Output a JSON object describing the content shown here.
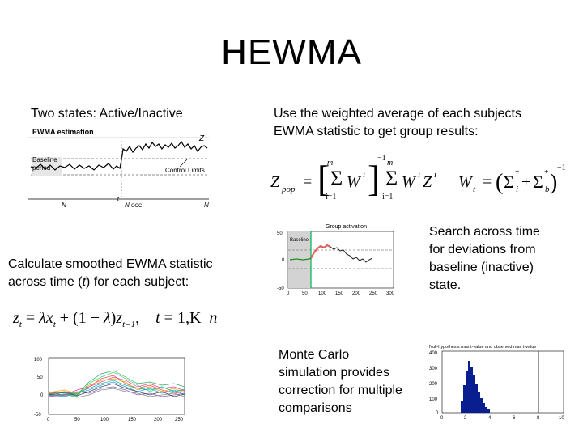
{
  "slide": {
    "title": "HEWMA",
    "left_heading": "Two states: Active/Inactive",
    "right_heading_line1": "Use the weighted average of each subjects",
    "right_heading_line2": "EWMA statistic to get group results:",
    "ewma_text_line1": "Calculate smoothed EWMA statistic",
    "ewma_text_line2_pre": "across time (",
    "ewma_text_line2_t": "t",
    "ewma_text_line2_post": ") for each subject:",
    "search_text": [
      "Search across time",
      "for deviations from",
      "baseline (inactive)",
      "state."
    ],
    "monte_text": [
      "Monte Carlo",
      "simulation provides",
      "correction for multiple",
      "comparisons"
    ]
  },
  "ewma_figure": {
    "title": "EWMA estimation",
    "baseline_label_1": "Baseline",
    "baseline_label_2": "period",
    "control_limits_label": "Control Limits",
    "z_label": "Z",
    "x_labels": [
      "N",
      "t",
      "N",
      "OCC",
      "N"
    ]
  },
  "group_figure": {
    "title": "Group activation",
    "baseline_label": "Baseline",
    "y_ticks": [
      "50",
      "0",
      "-50"
    ],
    "x_ticks": [
      "0",
      "50",
      "100",
      "150",
      "200",
      "250",
      "300"
    ]
  },
  "subjects_figure": {
    "y_ticks": [
      "100",
      "50",
      "0",
      "-50"
    ],
    "x_ticks": [
      "0",
      "50",
      "100",
      "150",
      "200",
      "250"
    ]
  },
  "histogram_figure": {
    "title": "Null-hypothesis max t-value and observed max t-value",
    "y_ticks": [
      "400",
      "300",
      "200",
      "100",
      "0"
    ],
    "x_ticks": [
      "0",
      "2",
      "4",
      "6",
      "8",
      "10"
    ]
  },
  "formulas": {
    "ewma": {
      "z": "z",
      "t_sub": "t",
      "eq": " = ",
      "lambda": "λ",
      "x": "x",
      "plus": " + (1 − ",
      "close": ")",
      "tm1": "t−1",
      "comma": ",",
      "t": "t",
      "eq2": " = 1,",
      "K": "K",
      "n": "n"
    },
    "zpop": {
      "Z": "Z",
      "pop": "pop",
      "m": "m",
      "W": "W",
      "i": "i",
      "i1": "i=1",
      "neg1": "−1",
      "Wt": "W",
      "t": "t",
      "sigma": "Σ",
      "star": "*",
      "b": "b"
    }
  }
}
